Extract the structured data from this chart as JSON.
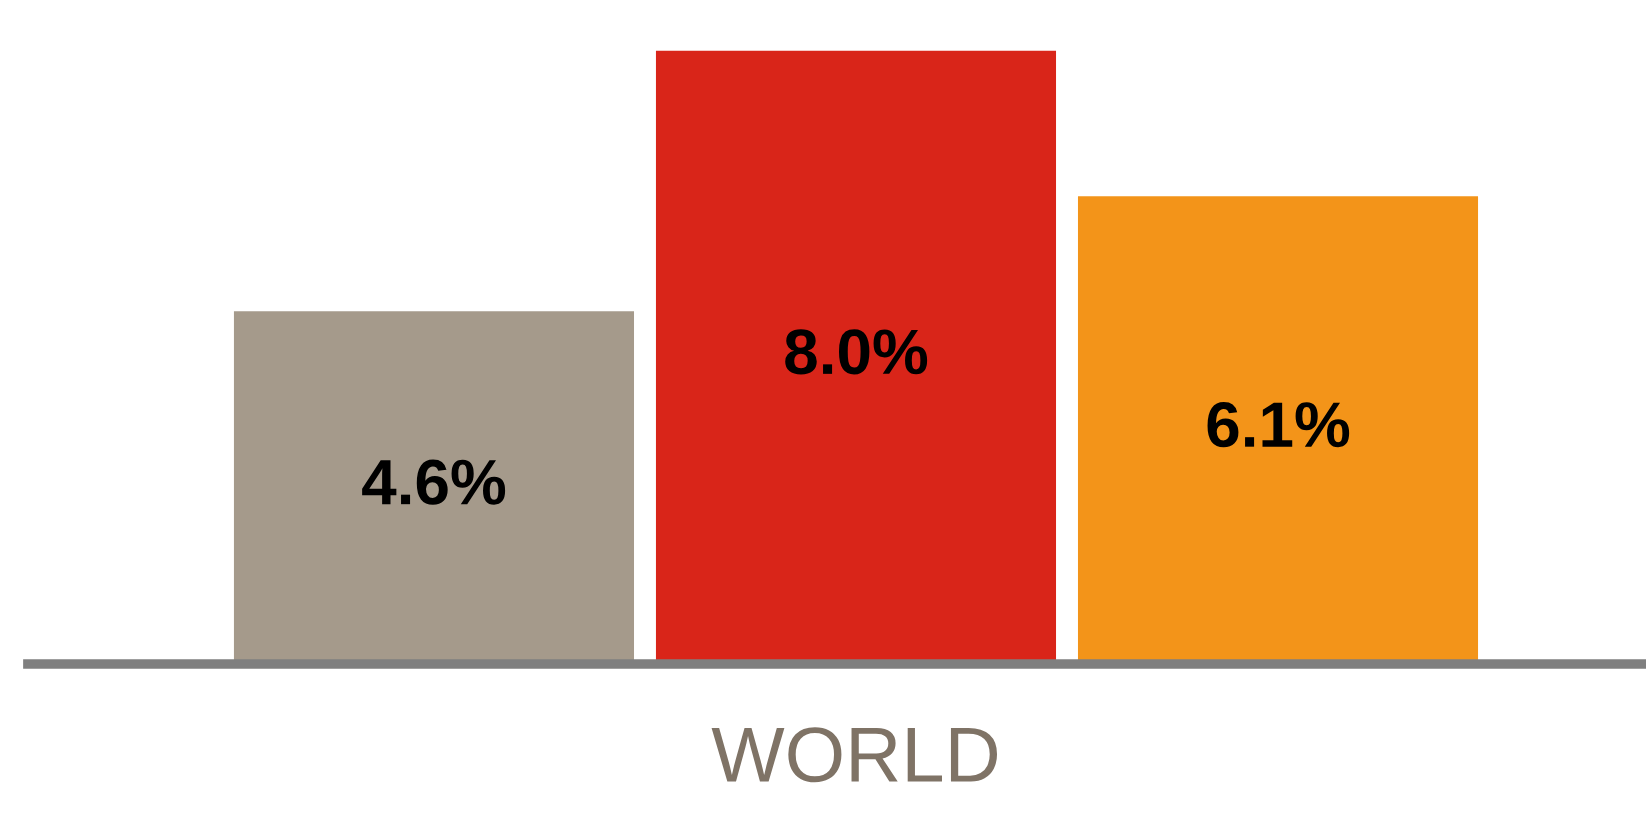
{
  "chart_data": {
    "type": "bar",
    "categories": [
      null,
      "WORLD",
      null
    ],
    "values": [
      4.6,
      8.0,
      6.1
    ],
    "colors": [
      "#a59a8b",
      "#d92519",
      "#f39419"
    ],
    "value_labels": [
      "4.6%",
      "8.0%",
      "6.1%"
    ],
    "tick_labels": "x",
    "grid": false,
    "legend": false
  }
}
